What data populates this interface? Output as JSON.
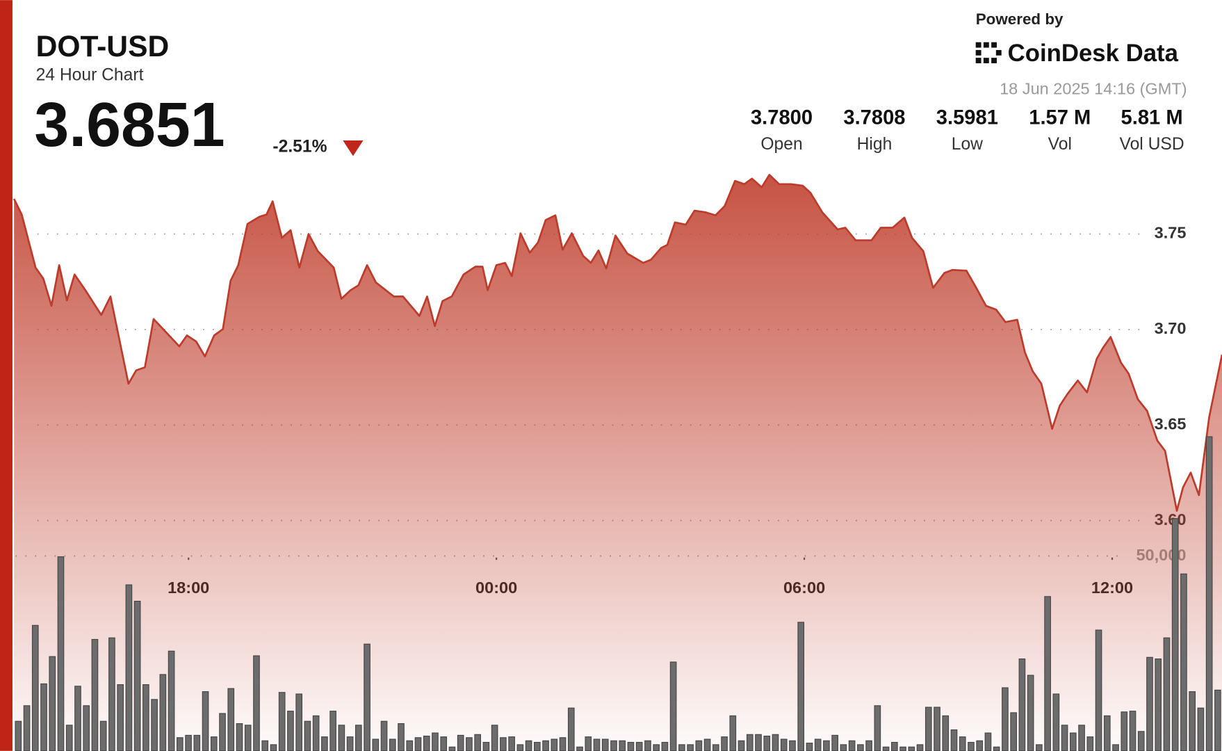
{
  "header": {
    "symbol": "DOT-USD",
    "subtitle": "24 Hour Chart",
    "price": "3.6851",
    "change": "-2.51%",
    "powered_by": "Powered by",
    "brand": "CoinDesk Data",
    "timestamp": "18 Jun 2025 14:16 (GMT)",
    "stats": [
      {
        "value": "3.7800",
        "label": "Open"
      },
      {
        "value": "3.7808",
        "label": "High"
      },
      {
        "value": "3.5981",
        "label": "Low"
      },
      {
        "value": "1.57 M",
        "label": "Vol"
      },
      {
        "value": "5.81 M",
        "label": "Vol USD"
      }
    ]
  },
  "chart_data": {
    "type": "line",
    "color": "#bd3b2b",
    "grid": true,
    "x": [
      14.6,
      14.75,
      15.02,
      15.17,
      15.33,
      15.48,
      15.63,
      15.78,
      15.99,
      16.3,
      16.48,
      16.83,
      16.98,
      17.15,
      17.32,
      17.59,
      17.82,
      17.97,
      18.15,
      18.32,
      18.5,
      18.67,
      18.82,
      18.97,
      19.15,
      19.38,
      19.52,
      19.64,
      19.82,
      19.99,
      20.16,
      20.34,
      20.52,
      20.83,
      20.98,
      21.16,
      21.31,
      21.48,
      21.65,
      22.0,
      22.18,
      22.5,
      22.65,
      22.8,
      22.95,
      23.13,
      23.36,
      23.59,
      23.73,
      23.83,
      24.0,
      24.17,
      24.3,
      24.47,
      24.65,
      24.81,
      24.96,
      25.15,
      25.29,
      25.47,
      25.69,
      25.84,
      25.99,
      26.14,
      26.32,
      26.55,
      26.86,
      27.01,
      27.21,
      27.33,
      27.48,
      27.69,
      27.86,
      28.07,
      28.27,
      28.45,
      28.65,
      28.83,
      28.98,
      29.17,
      29.32,
      29.51,
      29.74,
      29.97,
      30.12,
      30.35,
      30.65,
      30.8,
      31.0,
      31.31,
      31.49,
      31.72,
      31.95,
      32.1,
      32.32,
      32.51,
      32.73,
      32.89,
      33.16,
      33.36,
      33.54,
      33.74,
      33.92,
      34.15,
      34.3,
      34.45,
      34.62,
      34.83,
      34.98,
      35.13,
      35.33,
      35.51,
      35.7,
      35.82,
      35.97,
      36.17,
      36.32,
      36.5,
      36.68,
      36.88,
      37.03,
      37.26,
      37.38,
      37.53,
      37.69,
      37.89,
      38.14
    ],
    "series": [
      {
        "color": "#bd3b2b",
        "values": [
          3.7684,
          3.7602,
          3.7324,
          3.7267,
          3.7124,
          3.7337,
          3.7153,
          3.7288,
          3.7206,
          3.7076,
          3.7173,
          3.6716,
          3.6786,
          3.6802,
          3.7055,
          3.6978,
          3.6912,
          3.6969,
          3.6937,
          3.6859,
          3.6969,
          3.7002,
          3.7255,
          3.7337,
          3.7553,
          3.759,
          3.7602,
          3.7671,
          3.748,
          3.752,
          3.7324,
          3.75,
          3.741,
          3.7324,
          3.7161,
          3.7206,
          3.7231,
          3.7337,
          3.7247,
          3.7173,
          3.7173,
          3.7071,
          3.7173,
          3.7018,
          3.7149,
          3.7173,
          3.7288,
          3.7329,
          3.7329,
          3.7206,
          3.7337,
          3.7349,
          3.728,
          3.7504,
          3.7402,
          3.7455,
          3.7573,
          3.7598,
          3.7418,
          3.7504,
          3.7386,
          3.7349,
          3.7414,
          3.732,
          3.7492,
          3.7398,
          3.7349,
          3.7365,
          3.7427,
          3.7443,
          3.7561,
          3.7549,
          3.7622,
          3.7614,
          3.7598,
          3.7647,
          3.7778,
          3.7761,
          3.779,
          3.7745,
          3.781,
          3.7761,
          3.7761,
          3.7753,
          3.7716,
          3.7614,
          3.7524,
          3.7533,
          3.7467,
          3.7467,
          3.7533,
          3.7533,
          3.7586,
          3.748,
          3.741,
          3.7218,
          3.7296,
          3.7312,
          3.7308,
          3.7214,
          3.7124,
          3.7104,
          3.7039,
          3.7051,
          3.688,
          3.6782,
          3.6716,
          3.648,
          3.6602,
          3.6663,
          3.6733,
          3.6671,
          3.6847,
          3.6904,
          3.6961,
          3.6827,
          3.6769,
          3.6635,
          3.6574,
          3.6418,
          3.6365,
          3.6051,
          3.6173,
          3.6251,
          3.6133,
          3.6541,
          3.6868
        ]
      }
    ],
    "volume": {
      "type": "bar",
      "axis": "y2",
      "color": "#6c6c6c",
      "values": [
        7600,
        11600,
        32200,
        17200,
        24200,
        49800,
        6600,
        16600,
        11600,
        28600,
        7600,
        29000,
        17000,
        42600,
        38400,
        17000,
        13200,
        19600,
        25600,
        3400,
        4000,
        4000,
        15200,
        3600,
        9600,
        16000,
        7000,
        6600,
        24400,
        2600,
        1600,
        15000,
        10200,
        14600,
        7600,
        9000,
        3600,
        10200,
        6600,
        3600,
        6600,
        27400,
        3000,
        7600,
        3000,
        7000,
        2600,
        3400,
        3800,
        4600,
        3600,
        1000,
        4000,
        3400,
        4200,
        2200,
        6600,
        3400,
        3600,
        1600,
        2600,
        2200,
        2600,
        3000,
        3400,
        11000,
        1000,
        3600,
        3000,
        3000,
        2600,
        2600,
        2200,
        2200,
        2600,
        1600,
        2200,
        22800,
        1600,
        1600,
        2600,
        3000,
        1600,
        3600,
        9000,
        2600,
        4200,
        4200,
        3800,
        4200,
        3000,
        2600,
        33000,
        2000,
        3000,
        2600,
        4000,
        1600,
        2600,
        1600,
        2600,
        11600,
        1000,
        2200,
        1000,
        1000,
        1600,
        11200,
        11200,
        9000,
        5400,
        3600,
        2200,
        2600,
        4600,
        1000,
        16200,
        9800,
        23600,
        19400,
        1600,
        39600,
        14600,
        6600,
        4600,
        6600,
        3600,
        31000,
        9000,
        1600,
        10000,
        10200,
        5000,
        24000,
        23600,
        29000,
        59600,
        45400,
        15200,
        11000,
        80600,
        15600
      ]
    },
    "xlim": [
      14.6,
      38.14
    ],
    "xticks": [
      {
        "value": 18,
        "label": "18:00"
      },
      {
        "value": 24,
        "label": "00:00"
      },
      {
        "value": 30,
        "label": "06:00"
      },
      {
        "value": 36,
        "label": "12:00"
      }
    ],
    "ylim": [
      3.4794,
      3.7847
    ],
    "yticks": [
      {
        "value": 3.6,
        "label": "3.60"
      },
      3.65,
      {
        "value": 3.7,
        "label": "3.70"
      },
      3.75
    ],
    "y2lim": [
      0,
      149600
    ],
    "y2ticks": [
      {
        "value": 50000,
        "label": "50,000"
      }
    ]
  }
}
